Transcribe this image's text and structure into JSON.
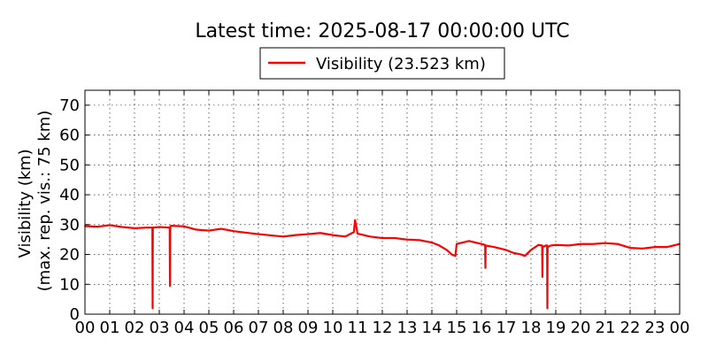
{
  "chart_data": {
    "type": "line",
    "title": "Latest time: 2025-08-17 00:00:00 UTC",
    "xlabel": "",
    "ylabel_line1": "Visibility (km)",
    "ylabel_line2": "(max. rep. vis.: 75 km)",
    "xlim": [
      0,
      24
    ],
    "ylim": [
      0,
      75
    ],
    "yticks": [
      0,
      10,
      20,
      30,
      40,
      50,
      60,
      70
    ],
    "xticks": [
      0,
      1,
      2,
      3,
      4,
      5,
      6,
      7,
      8,
      9,
      10,
      11,
      12,
      13,
      14,
      15,
      16,
      17,
      18,
      19,
      20,
      21,
      22,
      23,
      24
    ],
    "xtick_labels": [
      "00",
      "01",
      "02",
      "03",
      "04",
      "05",
      "06",
      "07",
      "08",
      "09",
      "10",
      "11",
      "12",
      "13",
      "14",
      "15",
      "16",
      "17",
      "18",
      "19",
      "20",
      "21",
      "22",
      "23",
      "00"
    ],
    "grid": true,
    "legend_placement": "top-center",
    "series": [
      {
        "name": "Visibility (23.523 km)",
        "color": "#ff0000",
        "x": [
          0,
          0.5,
          1,
          1.5,
          2,
          2.5,
          2.72,
          2.73,
          2.74,
          2.75,
          3,
          3.42,
          3.43,
          3.44,
          3.45,
          3.5,
          4,
          4.5,
          5,
          5.5,
          6,
          6.5,
          7,
          7.5,
          8,
          8.5,
          9,
          9.5,
          10,
          10.5,
          10.85,
          10.9,
          11,
          11.5,
          12,
          12.5,
          13,
          13.5,
          14,
          14.3,
          14.6,
          14.8,
          14.95,
          15,
          15.5,
          16,
          16.15,
          16.16,
          16.17,
          16.3,
          16.5,
          17,
          17.3,
          17.6,
          17.75,
          18,
          18.3,
          18.45,
          18.46,
          18.47,
          18.6,
          18.65,
          18.66,
          18.67,
          18.8,
          19,
          19.5,
          20,
          20.5,
          21,
          21.5,
          22,
          22.5,
          23,
          23.5,
          24
        ],
        "y": [
          29.5,
          29.3,
          29.8,
          29.2,
          28.8,
          29.0,
          29.0,
          2.0,
          28.5,
          29.0,
          29.2,
          29.0,
          9.5,
          28.8,
          29.5,
          29.6,
          29.4,
          28.3,
          28.0,
          28.6,
          27.8,
          27.3,
          26.8,
          26.4,
          26.0,
          26.5,
          26.8,
          27.2,
          26.5,
          26.0,
          27.5,
          31.5,
          27.0,
          26.0,
          25.5,
          25.5,
          25.0,
          24.8,
          24.0,
          23.0,
          21.5,
          20.0,
          19.5,
          23.5,
          24.5,
          23.5,
          23.2,
          15.5,
          23.0,
          22.8,
          22.5,
          21.5,
          20.5,
          20.0,
          19.5,
          21.5,
          23.2,
          23.0,
          12.5,
          22.5,
          23.0,
          23.0,
          2.0,
          22.5,
          23.0,
          23.2,
          23.0,
          23.5,
          23.5,
          23.8,
          23.5,
          22.2,
          22.0,
          22.5,
          22.5,
          23.5
        ]
      }
    ]
  }
}
